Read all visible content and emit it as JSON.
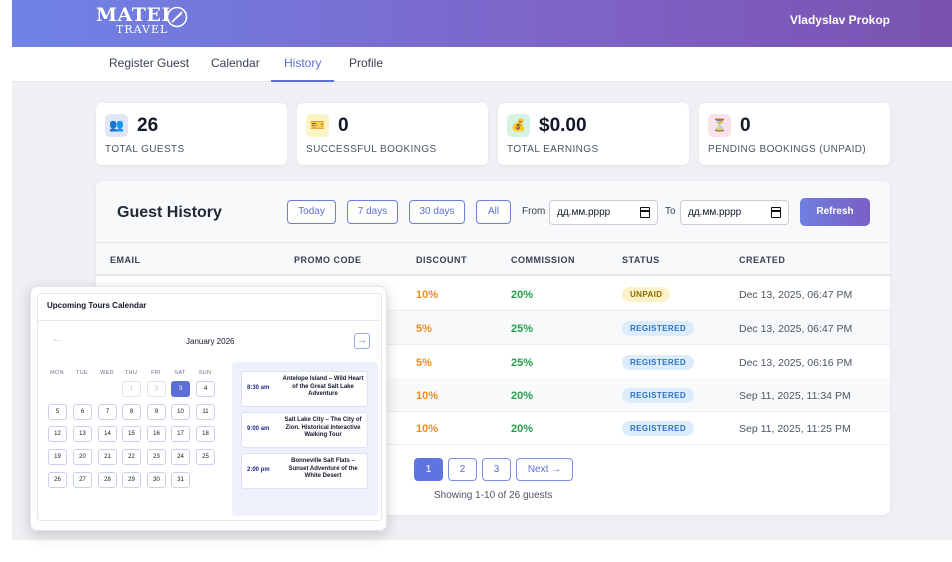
{
  "header": {
    "logo_line1": "MATEI",
    "logo_line2": "TRAVEL",
    "user_name": "Vladyslav Prokop"
  },
  "tabs": [
    {
      "label": "Register Guest",
      "active": false
    },
    {
      "label": "Calendar",
      "active": false
    },
    {
      "label": "History",
      "active": true
    },
    {
      "label": "Profile",
      "active": false
    }
  ],
  "stats": [
    {
      "icon": "👥",
      "icon_name": "guests-icon",
      "value": "26",
      "label": "TOTAL GUESTS",
      "icon_bg": "#dfe6f5"
    },
    {
      "icon": "🎫",
      "icon_name": "ticket-icon",
      "value": "0",
      "label": "SUCCESSFUL BOOKINGS",
      "icon_bg": "#fbf3c4"
    },
    {
      "icon": "💰",
      "icon_name": "money-bag-icon",
      "value": "$0.00",
      "label": "TOTAL EARNINGS",
      "icon_bg": "#d6f3e2"
    },
    {
      "icon": "⏳",
      "icon_name": "hourglass-icon",
      "value": "0",
      "label": "PENDING BOOKINGS (UNPAID)",
      "icon_bg": "#fbe1ea"
    }
  ],
  "history": {
    "title": "Guest History",
    "filters": [
      "Today",
      "7 days",
      "30 days",
      "All"
    ],
    "from_label": "From",
    "to_label": "To",
    "date_placeholder": "дд.мм.рррр",
    "refresh_label": "Refresh",
    "columns": [
      "EMAIL",
      "PROMO CODE",
      "DISCOUNT",
      "COMMISSION",
      "STATUS",
      "CREATED"
    ],
    "rows": [
      {
        "email": "",
        "promo": "",
        "discount": "10%",
        "commission": "20%",
        "status": "UNPAID",
        "created": "Dec 13, 2025, 06:47 PM"
      },
      {
        "email": "",
        "promo": "",
        "discount": "5%",
        "commission": "25%",
        "status": "REGISTERED",
        "created": "Dec 13, 2025, 06:47 PM"
      },
      {
        "email": "",
        "promo": "",
        "discount": "5%",
        "commission": "25%",
        "status": "REGISTERED",
        "created": "Dec 13, 2025, 06:16 PM"
      },
      {
        "email": "",
        "promo": "",
        "discount": "10%",
        "commission": "20%",
        "status": "REGISTERED",
        "created": "Sep 11, 2025, 11:34 PM"
      },
      {
        "email": "",
        "promo": "",
        "discount": "10%",
        "commission": "20%",
        "status": "REGISTERED",
        "created": "Sep 11, 2025, 11:25 PM"
      }
    ],
    "pages": [
      "1",
      "2",
      "3"
    ],
    "current_page": "1",
    "next_label": "Next →",
    "showing_text": "Showing 1-10 of 26 guests"
  },
  "calendar": {
    "title": "Upcoming Tours Calendar",
    "month": "January 2026",
    "prev_glyph": "←",
    "next_glyph": "→",
    "weekdays": [
      "MON",
      "TUE",
      "WED",
      "THU",
      "FRI",
      "SAT",
      "SUN"
    ],
    "leading_muted": [
      "1",
      "2"
    ],
    "today": "3",
    "days": [
      "4",
      "5",
      "6",
      "7",
      "8",
      "9",
      "10",
      "11",
      "12",
      "13",
      "14",
      "15",
      "16",
      "17",
      "18",
      "19",
      "20",
      "21",
      "22",
      "23",
      "24",
      "25",
      "26",
      "27",
      "28",
      "29",
      "30",
      "31"
    ],
    "events": [
      {
        "time": "8:30 am",
        "title": "Antelope Island – Wild Heart of the Great Salt Lake Adventure"
      },
      {
        "time": "9:00 am",
        "title": "Salt Lake City – The City of Zion. Historical Interactive Walking Tour"
      },
      {
        "time": "2:00 pm",
        "title": "Bonneville Salt Flats – Sunset Adventure of the White Desert"
      }
    ]
  },
  "colors": {
    "accent": "#5b6fd6",
    "discount": "#f08c1a",
    "commission": "#22a04b",
    "unpaid_bg": "#fdf1c8",
    "registered_bg": "#dcecfb"
  }
}
